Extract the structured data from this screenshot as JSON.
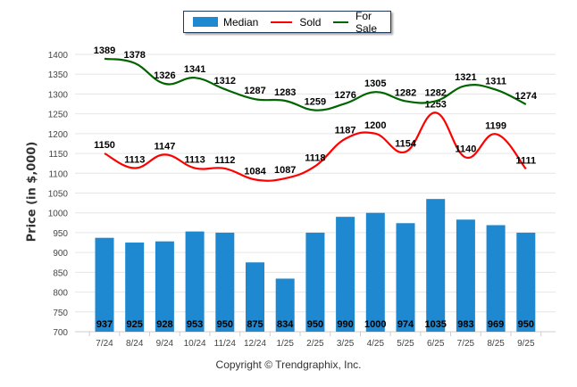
{
  "legend": {
    "items": [
      {
        "label": "Median",
        "kind": "bar",
        "color": "#1e88d0"
      },
      {
        "label": "Sold",
        "kind": "line",
        "color": "#ff0000"
      },
      {
        "label": "For Sale",
        "kind": "line",
        "color": "#006400"
      }
    ]
  },
  "footer": {
    "copyright": "Copyright © Trendgraphix, Inc."
  },
  "chart_data": {
    "type": "bar",
    "title": "",
    "xlabel": "",
    "ylabel": "Price (in $,000)",
    "ylim": [
      700,
      1400
    ],
    "yticks": [
      700,
      750,
      800,
      850,
      900,
      950,
      1000,
      1050,
      1100,
      1150,
      1200,
      1250,
      1300,
      1350,
      1400
    ],
    "grid": true,
    "legend_position": "top-center",
    "categories": [
      "7/24",
      "8/24",
      "9/24",
      "10/24",
      "11/24",
      "12/24",
      "1/25",
      "2/25",
      "3/25",
      "4/25",
      "5/25",
      "6/25",
      "7/25",
      "8/25",
      "9/25"
    ],
    "series": [
      {
        "name": "Median",
        "type": "bar",
        "color": "#1e88d0",
        "values": [
          937,
          925,
          928,
          953,
          950,
          875,
          834,
          950,
          990,
          1000,
          974,
          1035,
          983,
          969,
          950
        ]
      },
      {
        "name": "Sold",
        "type": "line",
        "color": "#ff0000",
        "values": [
          1150,
          1113,
          1147,
          1113,
          1112,
          1084,
          1087,
          1118,
          1187,
          1200,
          1154,
          1253,
          1140,
          1199,
          1111
        ]
      },
      {
        "name": "For Sale",
        "type": "line",
        "color": "#006400",
        "values": [
          1389,
          1378,
          1326,
          1341,
          1312,
          1287,
          1283,
          1259,
          1276,
          1305,
          1282,
          1282,
          1321,
          1311,
          1274
        ]
      }
    ]
  }
}
